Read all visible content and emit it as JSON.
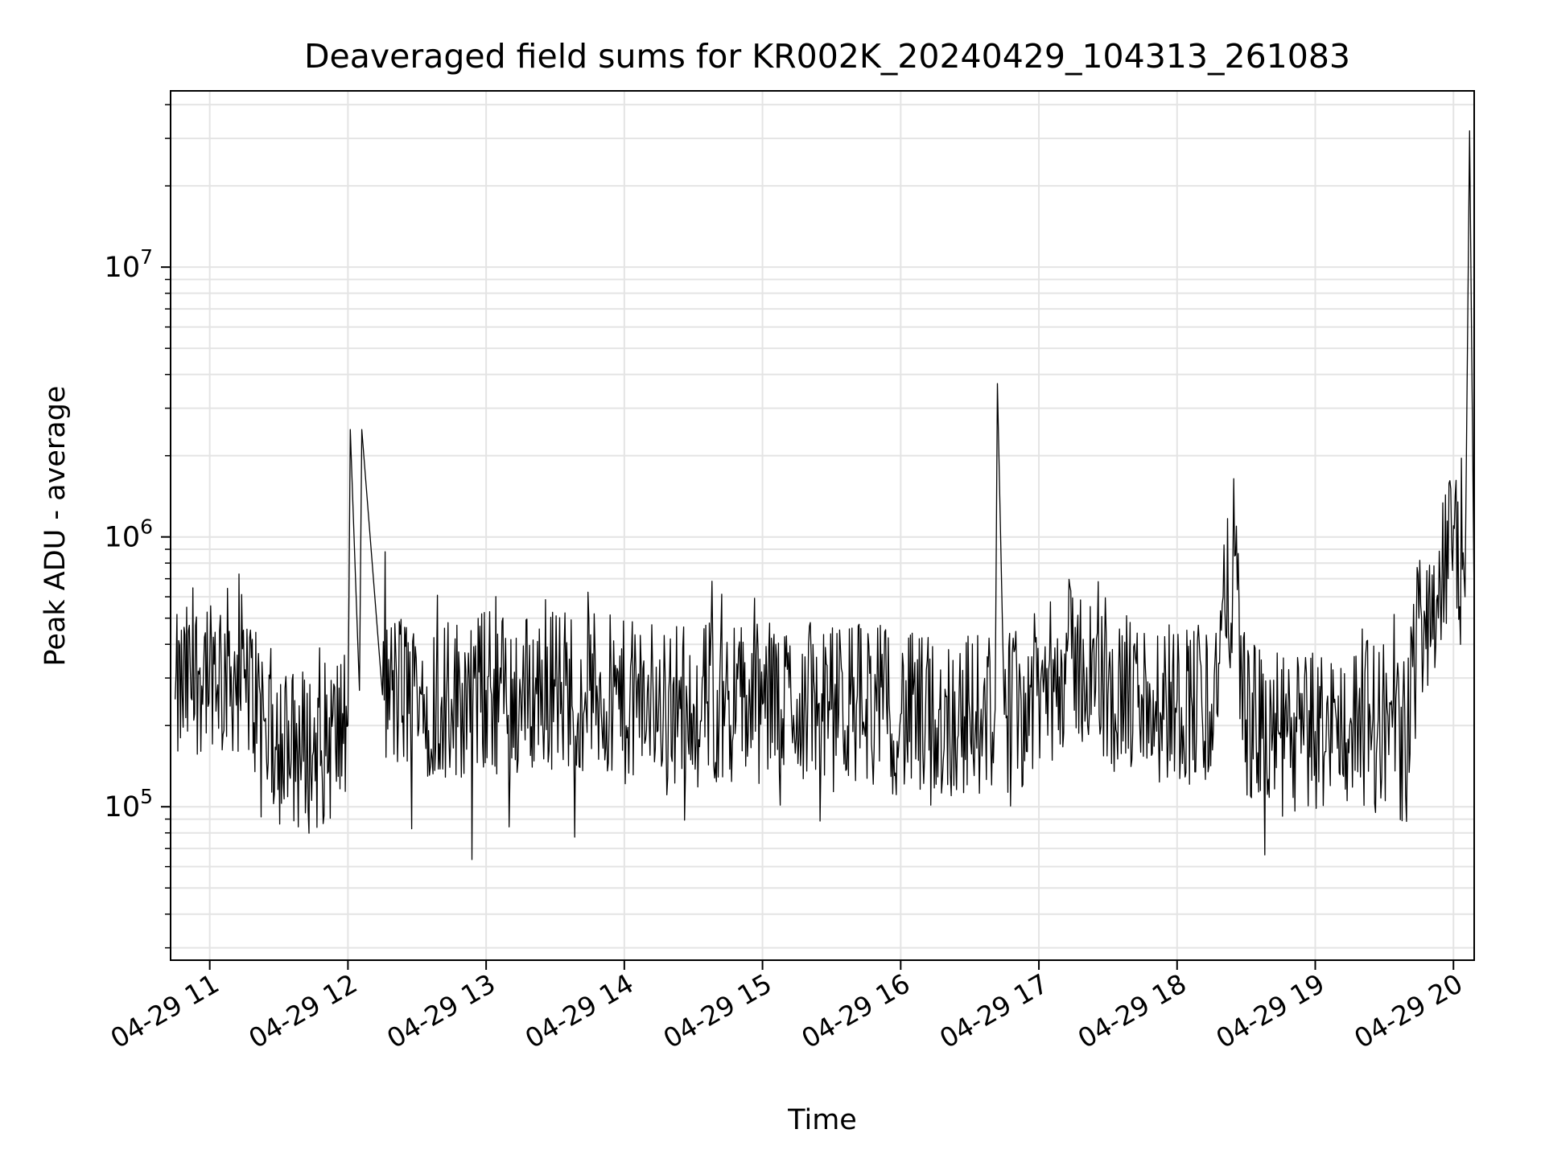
{
  "chart_data": {
    "type": "line",
    "title": "Deaveraged field sums for KR002K_20240429_104313_261083",
    "xlabel": "Time",
    "ylabel": "Peak ADU - average",
    "x_axis": {
      "kind": "date",
      "range": [
        "2024-04-29 10:43",
        "2024-04-29 20:09"
      ],
      "ticks": [
        {
          "value": "2024-04-29 11:00",
          "label": "04-29 11"
        },
        {
          "value": "2024-04-29 12:00",
          "label": "04-29 12"
        },
        {
          "value": "2024-04-29 13:00",
          "label": "04-29 13"
        },
        {
          "value": "2024-04-29 14:00",
          "label": "04-29 14"
        },
        {
          "value": "2024-04-29 15:00",
          "label": "04-29 15"
        },
        {
          "value": "2024-04-29 16:00",
          "label": "04-29 16"
        },
        {
          "value": "2024-04-29 17:00",
          "label": "04-29 17"
        },
        {
          "value": "2024-04-29 18:00",
          "label": "04-29 18"
        },
        {
          "value": "2024-04-29 19:00",
          "label": "04-29 19"
        },
        {
          "value": "2024-04-29 20:00",
          "label": "04-29 20"
        }
      ]
    },
    "y_axis": {
      "scale": "log",
      "range": [
        27000,
        45000000
      ],
      "ticks": [
        {
          "value": 100000,
          "base": "10",
          "exp": "5"
        },
        {
          "value": 1000000,
          "base": "10",
          "exp": "6"
        },
        {
          "value": 10000000,
          "base": "10",
          "exp": "7"
        }
      ]
    },
    "grid": true,
    "line_color": "#000000",
    "series": [
      {
        "x": [
          "2024-04-29 10:45",
          "2024-04-29 11:00",
          "2024-04-29 11:15",
          "2024-04-29 11:30",
          "2024-04-29 11:45",
          "2024-04-29 12:00",
          "2024-04-29 12:01",
          "2024-04-29 12:05",
          "2024-04-29 12:06",
          "2024-04-29 12:15",
          "2024-04-29 12:30",
          "2024-04-29 12:45",
          "2024-04-29 13:00",
          "2024-04-29 13:15",
          "2024-04-29 13:30",
          "2024-04-29 13:45",
          "2024-04-29 14:00",
          "2024-04-29 14:15",
          "2024-04-29 14:30",
          "2024-04-29 14:45",
          "2024-04-29 15:00",
          "2024-04-29 15:15",
          "2024-04-29 15:30",
          "2024-04-29 15:45",
          "2024-04-29 16:00",
          "2024-04-29 16:15",
          "2024-04-29 16:30",
          "2024-04-29 16:41",
          "2024-04-29 16:42",
          "2024-04-29 16:45",
          "2024-04-29 17:00",
          "2024-04-29 17:15",
          "2024-04-29 17:30",
          "2024-04-29 17:45",
          "2024-04-29 18:00",
          "2024-04-29 18:15",
          "2024-04-29 18:25",
          "2024-04-29 18:30",
          "2024-04-29 18:45",
          "2024-04-29 19:00",
          "2024-04-29 19:15",
          "2024-04-29 19:30",
          "2024-04-29 19:40",
          "2024-04-29 19:45",
          "2024-04-29 19:55",
          "2024-04-29 20:00",
          "2024-04-29 20:05",
          "2024-04-29 20:07",
          "2024-04-29 20:09"
        ],
        "y": [
          250000,
          350000,
          300000,
          170000,
          160000,
          200000,
          2500000,
          270000,
          2500000,
          260000,
          270000,
          250000,
          270000,
          260000,
          280000,
          270000,
          240000,
          250000,
          240000,
          250000,
          240000,
          250000,
          230000,
          250000,
          220000,
          210000,
          220000,
          230000,
          3700000,
          220000,
          260000,
          360000,
          260000,
          250000,
          250000,
          240000,
          850000,
          210000,
          180000,
          190000,
          200000,
          210000,
          170000,
          500000,
          650000,
          1100000,
          600000,
          32000000,
          550000
        ]
      }
    ]
  }
}
